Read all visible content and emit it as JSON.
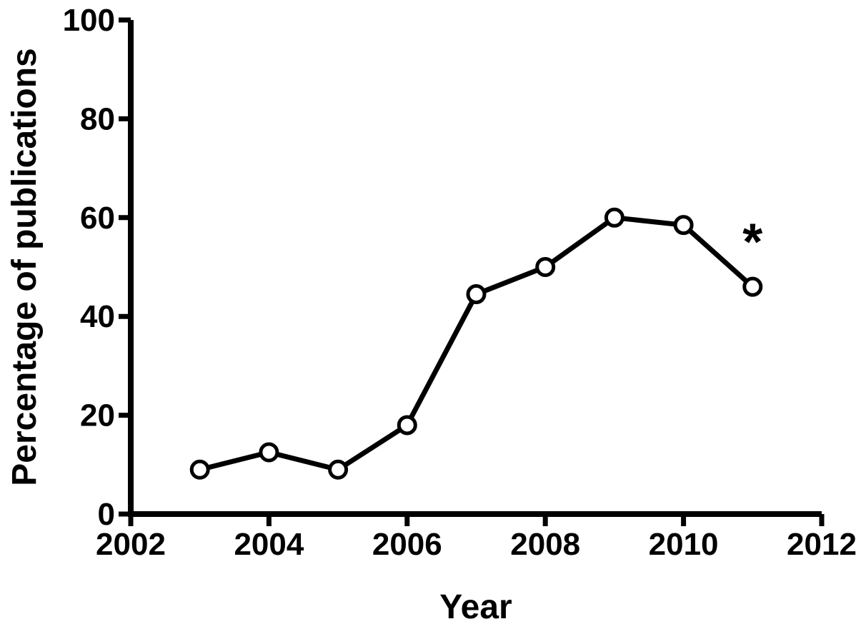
{
  "chart_data": {
    "type": "line",
    "title": "",
    "xlabel": "Year",
    "ylabel": "Percentage of publications",
    "x": [
      2003,
      2004,
      2005,
      2006,
      2007,
      2008,
      2009,
      2010,
      2011
    ],
    "values": [
      9,
      12.5,
      9,
      18,
      44.5,
      50,
      60,
      58.5,
      46
    ],
    "xlim": [
      2002,
      2012
    ],
    "ylim": [
      0,
      100
    ],
    "x_ticks": [
      2002,
      2004,
      2006,
      2008,
      2010,
      2012
    ],
    "y_ticks": [
      0,
      20,
      40,
      60,
      80,
      100
    ],
    "grid": false,
    "legend": "none",
    "marker": "open-circle",
    "line_color": "#000000",
    "marker_fill": "#ffffff",
    "text_color": "#000000",
    "background": "#ffffff",
    "annotation": {
      "text": "*",
      "x": 2011,
      "y": 57
    }
  }
}
